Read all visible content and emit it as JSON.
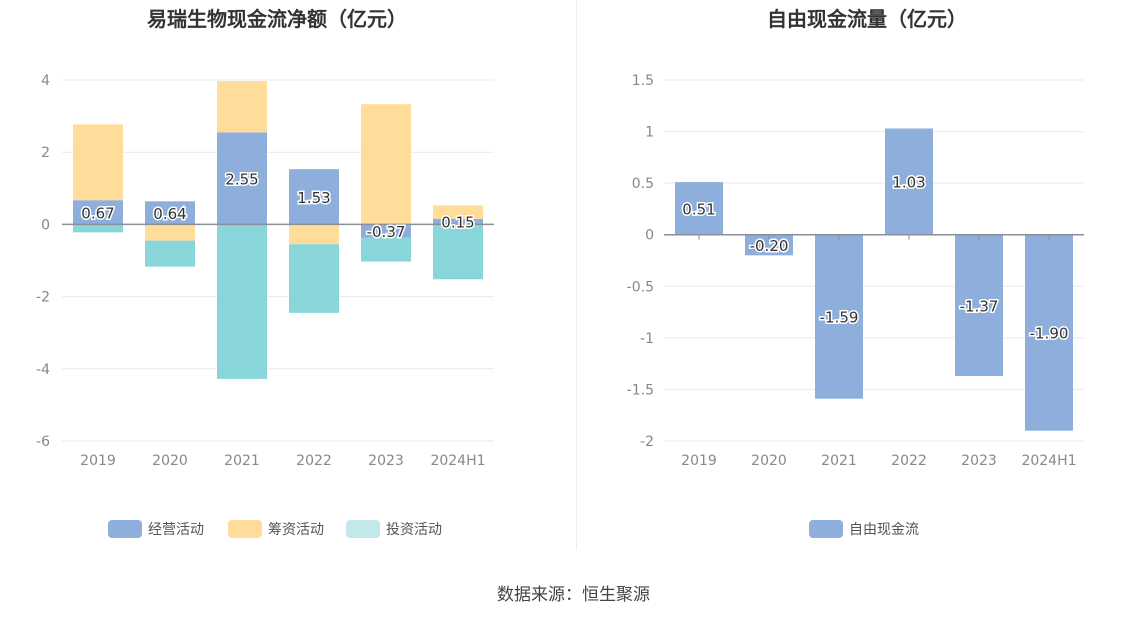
{
  "source_note": "数据来源：恒生聚源",
  "colors": {
    "operating": "#8eaedc",
    "financing": "#ffdc9a",
    "investing": "#88d6da",
    "free_cash_flow": "#8eaedc",
    "grid": "#e6e9f0",
    "axis_text": "#888888"
  },
  "chart_data": [
    {
      "type": "bar",
      "stacked": true,
      "title": "易瑞生物现金流净额（亿元）",
      "categories": [
        "2019",
        "2020",
        "2021",
        "2022",
        "2023",
        "2024H1"
      ],
      "ylim": [
        -6,
        4
      ],
      "yticks": [
        "4",
        "2",
        "0",
        "-2",
        "-4",
        "-6"
      ],
      "grid": true,
      "legend_position": "bottom",
      "series": [
        {
          "name": "经营活动",
          "values": [
            0.67,
            0.64,
            2.55,
            1.53,
            -0.37,
            0.15
          ],
          "labels": [
            "0.67",
            "0.64",
            "2.55",
            "1.53",
            "-0.37",
            "0.15"
          ]
        },
        {
          "name": "筹资活动",
          "values": [
            2.1,
            -0.45,
            1.42,
            -0.55,
            3.33,
            0.38
          ]
        },
        {
          "name": "投资活动",
          "values": [
            -0.22,
            -0.72,
            -4.28,
            -1.9,
            -0.66,
            -1.52
          ]
        }
      ]
    },
    {
      "type": "bar",
      "title": "自由现金流量（亿元）",
      "categories": [
        "2019",
        "2020",
        "2021",
        "2022",
        "2023",
        "2024H1"
      ],
      "ylim": [
        -2,
        1.5
      ],
      "yticks": [
        "1.5",
        "1",
        "0.5",
        "0",
        "-0.5",
        "-1",
        "-1.5",
        "-2"
      ],
      "grid": true,
      "legend_position": "bottom",
      "series": [
        {
          "name": "自由现金流",
          "values": [
            0.51,
            -0.2,
            -1.59,
            1.03,
            -1.37,
            -1.9
          ],
          "labels": [
            "0.51",
            "-0.20",
            "-1.59",
            "1.03",
            "-1.37",
            "-1.90"
          ]
        }
      ]
    }
  ]
}
